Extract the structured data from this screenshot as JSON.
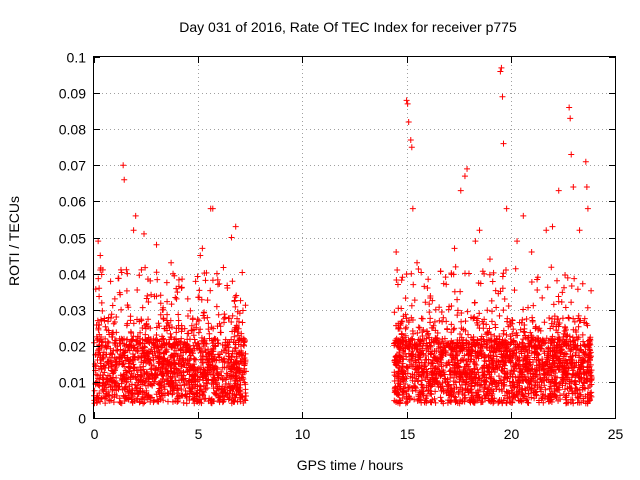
{
  "chart_data": {
    "type": "scatter",
    "title": "Day 031 of 2016, Rate Of TEC Index for receiver p775",
    "xlabel": "GPS time / hours",
    "ylabel": "ROTI / TECUs",
    "xlim": [
      0,
      25
    ],
    "ylim": [
      0,
      0.1
    ],
    "grid": true,
    "marker": "+",
    "color": "#ff0000",
    "xticks": [
      0,
      5,
      10,
      15,
      20,
      25
    ],
    "xtick_labels": [
      "0",
      "5",
      "10",
      "15",
      "20",
      "25"
    ],
    "yticks": [
      0,
      0.01,
      0.02,
      0.03,
      0.04,
      0.05,
      0.06,
      0.07,
      0.08,
      0.09,
      0.1
    ],
    "ytick_labels": [
      "0",
      "0.01",
      "0.02",
      "0.03",
      "0.04",
      "0.05",
      "0.06",
      "0.07",
      "0.08",
      "0.09",
      "0.1"
    ],
    "series": [
      {
        "name": "ROTI",
        "note": "dense point clouds spanning ~0.0–7.3 h and ~14.4–23.9 h; representative points below",
        "points": [
          [
            0.1,
            0.012
          ],
          [
            0.2,
            0.049
          ],
          [
            0.3,
            0.045
          ],
          [
            0.3,
            0.041
          ],
          [
            0.5,
            0.027
          ],
          [
            0.8,
            0.018
          ],
          [
            1.0,
            0.033
          ],
          [
            1.3,
            0.03
          ],
          [
            1.4,
            0.07
          ],
          [
            1.45,
            0.066
          ],
          [
            1.6,
            0.04
          ],
          [
            1.9,
            0.052
          ],
          [
            2.0,
            0.056
          ],
          [
            2.4,
            0.051
          ],
          [
            2.7,
            0.038
          ],
          [
            3.0,
            0.048
          ],
          [
            3.2,
            0.034
          ],
          [
            3.5,
            0.027
          ],
          [
            3.7,
            0.043
          ],
          [
            4.2,
            0.036
          ],
          [
            4.5,
            0.033
          ],
          [
            4.9,
            0.025
          ],
          [
            5.1,
            0.045
          ],
          [
            5.2,
            0.047
          ],
          [
            5.6,
            0.058
          ],
          [
            5.7,
            0.058
          ],
          [
            5.9,
            0.04
          ],
          [
            6.4,
            0.036
          ],
          [
            6.6,
            0.05
          ],
          [
            6.8,
            0.053
          ],
          [
            7.0,
            0.029
          ],
          [
            7.2,
            0.02
          ],
          [
            14.5,
            0.046
          ],
          [
            14.8,
            0.039
          ],
          [
            15.0,
            0.088
          ],
          [
            15.05,
            0.087
          ],
          [
            15.1,
            0.082
          ],
          [
            15.2,
            0.077
          ],
          [
            15.25,
            0.075
          ],
          [
            15.3,
            0.058
          ],
          [
            15.5,
            0.043
          ],
          [
            16.0,
            0.036
          ],
          [
            16.4,
            0.03
          ],
          [
            16.9,
            0.037
          ],
          [
            17.3,
            0.047
          ],
          [
            17.6,
            0.063
          ],
          [
            17.8,
            0.067
          ],
          [
            17.9,
            0.069
          ],
          [
            18.3,
            0.049
          ],
          [
            18.5,
            0.052
          ],
          [
            19.0,
            0.044
          ],
          [
            19.5,
            0.096
          ],
          [
            19.55,
            0.097
          ],
          [
            19.6,
            0.089
          ],
          [
            19.65,
            0.076
          ],
          [
            19.8,
            0.058
          ],
          [
            20.3,
            0.049
          ],
          [
            20.6,
            0.056
          ],
          [
            21.0,
            0.046
          ],
          [
            21.3,
            0.039
          ],
          [
            21.7,
            0.052
          ],
          [
            22.0,
            0.053
          ],
          [
            22.3,
            0.063
          ],
          [
            22.8,
            0.086
          ],
          [
            22.85,
            0.083
          ],
          [
            22.9,
            0.073
          ],
          [
            23.0,
            0.064
          ],
          [
            23.3,
            0.052
          ],
          [
            23.6,
            0.071
          ],
          [
            23.65,
            0.064
          ],
          [
            23.7,
            0.058
          ]
        ]
      }
    ]
  }
}
